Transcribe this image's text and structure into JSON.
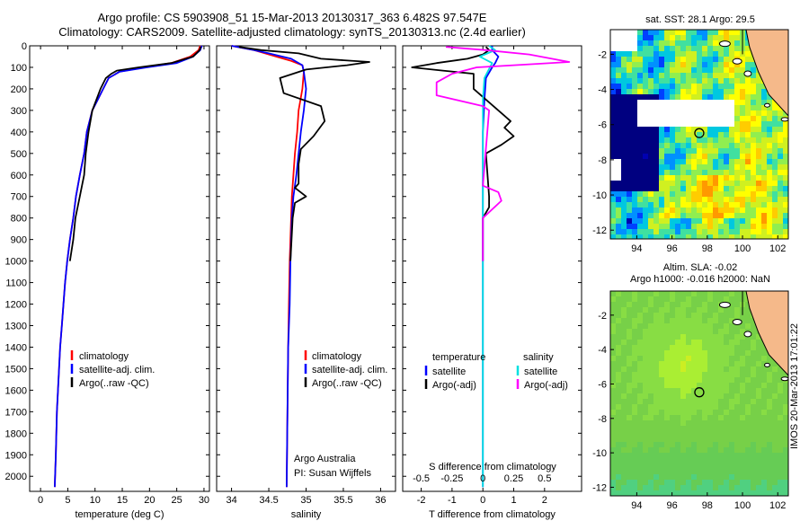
{
  "header": {
    "line1": "Argo profile: CS 5903908_51 15-Mar-2013 20130317_363 6.482S 97.547E",
    "line2": "Climatology: CARS2009. Satellite-adjusted climatology: synTS_20130313.nc (2.4d earlier)"
  },
  "colors": {
    "climatology": "#ff0000",
    "satellite": "#0000ff",
    "argo": "#000000",
    "sal_satellite": "#00e0e0",
    "sal_argo": "#ff00ff",
    "land": "#f5b98a"
  },
  "chart_data": [
    {
      "type": "line",
      "name": "temperature",
      "xlabel": "temperature (deg C)",
      "ylabel": "",
      "xlim": [
        -2,
        31
      ],
      "ylim": [
        2070,
        0
      ],
      "xticks": [
        0,
        5,
        10,
        15,
        20,
        25,
        30
      ],
      "xtick_labels": [
        "0",
        "5",
        "10",
        "15",
        "20",
        "25",
        "30"
      ],
      "yticks": [
        0,
        100,
        200,
        300,
        400,
        500,
        600,
        700,
        800,
        900,
        1000,
        1100,
        1200,
        1300,
        1400,
        1500,
        1600,
        1700,
        1800,
        1900,
        2000
      ],
      "ytick_labels": [
        "0",
        "100",
        "200",
        "300",
        "400",
        "500",
        "600",
        "700",
        "800",
        "900",
        "1000",
        "1100",
        "1200",
        "1300",
        "1400",
        "1500",
        "1600",
        "1700",
        "1800",
        "1900",
        "2000"
      ],
      "legend": [
        "climatology",
        "satellite-adj. clim.",
        "Argo(..raw -QC)"
      ],
      "series": [
        {
          "name": "climatology",
          "color": "#ff0000",
          "x": [
            29.3,
            29.0,
            27.5,
            24,
            19,
            14.5,
            12.5,
            11.5,
            10.5,
            9.5,
            8.5,
            8,
            7.2,
            6.5,
            6,
            5.4,
            4.9,
            4.5,
            4.2,
            3.9,
            3.6,
            3.4,
            3.2,
            3.0,
            2.8,
            2.6
          ],
          "y": [
            0,
            20,
            50,
            80,
            100,
            120,
            150,
            200,
            250,
            300,
            400,
            500,
            600,
            700,
            800,
            900,
            1000,
            1100,
            1200,
            1300,
            1400,
            1500,
            1600,
            1700,
            1900,
            2050
          ]
        },
        {
          "name": "satellite-adj. clim.",
          "color": "#0000ff",
          "x": [
            29.6,
            29.3,
            28.0,
            25,
            19.5,
            14.5,
            12.5,
            11.5,
            10.5,
            9.5,
            8.5,
            8,
            7.2,
            6.5,
            6,
            5.4,
            4.9,
            4.5,
            4.2,
            3.9,
            3.6,
            3.4,
            3.2,
            3.0,
            2.8,
            2.6
          ],
          "y": [
            0,
            20,
            50,
            80,
            100,
            120,
            150,
            200,
            250,
            300,
            400,
            500,
            600,
            700,
            800,
            900,
            1000,
            1100,
            1200,
            1300,
            1400,
            1500,
            1600,
            1700,
            1900,
            2050
          ]
        },
        {
          "name": "Argo(..raw -QC)",
          "color": "#000000",
          "x": [
            29.4,
            29.2,
            28.0,
            24,
            18,
            14,
            13,
            12,
            11,
            9.5,
            8.8,
            8.3,
            8,
            7.6,
            7.2,
            6.4,
            6,
            5.4
          ],
          "y": [
            5,
            20,
            50,
            80,
            100,
            115,
            130,
            150,
            200,
            300,
            400,
            500,
            600,
            650,
            700,
            800,
            900,
            1000
          ]
        }
      ]
    },
    {
      "type": "line",
      "name": "salinity",
      "xlabel": "salinity",
      "ylabel": "",
      "xlim": [
        33.8,
        36.2
      ],
      "ylim": [
        2070,
        0
      ],
      "xticks": [
        34,
        34.5,
        35,
        35.5,
        36
      ],
      "xtick_labels": [
        "34",
        "34.5",
        "35",
        "35.5",
        "36"
      ],
      "legend": [
        "climatology",
        "satellite-adj. clim.",
        "Argo(..raw -QC)"
      ],
      "annotation": [
        "Argo Australia",
        "PI: Susan Wijffels"
      ],
      "series": [
        {
          "name": "climatology",
          "color": "#ff0000",
          "x": [
            34.0,
            34.3,
            34.6,
            34.8,
            34.95,
            34.97,
            34.95,
            34.9,
            34.88,
            34.85,
            34.83,
            34.81,
            34.8,
            34.79,
            34.78,
            34.77,
            34.76,
            34.75,
            34.74
          ],
          "y": [
            0,
            20,
            50,
            70,
            90,
            120,
            200,
            300,
            400,
            500,
            600,
            700,
            800,
            900,
            1000,
            1200,
            1400,
            1700,
            2050
          ]
        },
        {
          "name": "satellite-adj. clim.",
          "color": "#0000ff",
          "x": [
            34.0,
            34.3,
            34.5,
            34.8,
            34.95,
            34.97,
            35.0,
            34.97,
            34.93,
            34.9,
            34.87,
            34.85,
            34.83,
            34.81,
            34.8,
            34.79,
            34.78,
            34.76,
            34.75,
            34.74
          ],
          "y": [
            0,
            20,
            35,
            60,
            90,
            120,
            200,
            300,
            400,
            500,
            600,
            650,
            700,
            800,
            900,
            1000,
            1200,
            1400,
            1700,
            2050
          ]
        },
        {
          "name": "Argo(..raw -QC)",
          "color": "#000000",
          "x": [
            34.1,
            34.4,
            34.9,
            35.2,
            35.85,
            35.55,
            35.0,
            34.65,
            34.7,
            35.2,
            35.25,
            35.1,
            34.93,
            34.9,
            34.9,
            34.9,
            34.85,
            35.0,
            34.85,
            34.82,
            34.79
          ],
          "y": [
            5,
            20,
            35,
            60,
            75,
            90,
            110,
            150,
            220,
            280,
            350,
            420,
            480,
            550,
            600,
            640,
            660,
            700,
            730,
            800,
            1000
          ]
        }
      ]
    },
    {
      "type": "line",
      "name": "differences",
      "xlabel": "T difference from climatology",
      "x2label": "S difference from climatology",
      "xlim": [
        -2.6,
        3.2
      ],
      "ylim": [
        2070,
        0
      ],
      "xticks": [
        -2,
        -1,
        0,
        1,
        2
      ],
      "xtick_labels": [
        "-2",
        "-1",
        "0",
        "1",
        "2"
      ],
      "x2ticks": [
        -0.5,
        -0.25,
        0,
        0.25,
        0.5
      ],
      "x2tick_labels": [
        "-0.5",
        "-0.25",
        "0",
        "0.25",
        "0.5"
      ],
      "legend_headers": [
        "temperature",
        "salinity"
      ],
      "legend": [
        "satellite",
        "Argo(-adj)",
        "satellite",
        "Argo(-adj)"
      ],
      "series": [
        {
          "name": "T satellite",
          "color": "#0000ff",
          "x": [
            0.3,
            0.3,
            0.5,
            0.4,
            0.3,
            0.1,
            0.05,
            0,
            0,
            0,
            0
          ],
          "y": [
            0,
            20,
            50,
            80,
            100,
            150,
            250,
            400,
            800,
            1500,
            2050
          ]
        },
        {
          "name": "T Argo(-adj)",
          "color": "#000000",
          "x": [
            0.1,
            0.2,
            0,
            -0.5,
            -1.5,
            -2.3,
            -1.3,
            -0.3,
            -0.3,
            0.5,
            0.9,
            0.7,
            1.0,
            0.6,
            0.1,
            0.2,
            0.2,
            0,
            0
          ],
          "y": [
            5,
            20,
            40,
            60,
            80,
            100,
            115,
            130,
            200,
            300,
            350,
            380,
            420,
            460,
            500,
            700,
            750,
            800,
            1000
          ]
        },
        {
          "name": "S satellite",
          "color": "#00e0e0",
          "x": [
            0.2,
            0.4,
            -0.1,
            0.3,
            0.05,
            0,
            0,
            0,
            0
          ],
          "y": [
            0,
            20,
            50,
            80,
            150,
            250,
            500,
            1000,
            2050
          ]
        },
        {
          "name": "S Argo(-adj)",
          "color": "#ff00ff",
          "x": [
            -1.2,
            0.1,
            1.5,
            2.8,
            1.0,
            -0.2,
            -1.0,
            -1.5,
            -1.5,
            0,
            0.2,
            0,
            0.5,
            0.6,
            0,
            0
          ],
          "y": [
            5,
            20,
            40,
            75,
            90,
            100,
            130,
            170,
            230,
            280,
            300,
            650,
            680,
            720,
            800,
            1000
          ]
        }
      ]
    },
    {
      "type": "heatmap",
      "name": "sst-map",
      "title": "sat. SST: 28.1  Argo: 29.5",
      "xlim": [
        92.5,
        102.6
      ],
      "ylim": [
        -12.5,
        -0.6
      ],
      "xticks": [
        94,
        96,
        98,
        100,
        102
      ],
      "xtick_labels": [
        "94",
        "96",
        "98",
        "100",
        "102"
      ],
      "yticks": [
        -2,
        -4,
        -6,
        -8,
        -10,
        -12
      ],
      "ytick_labels": [
        "-2",
        "-4",
        "-6",
        "-8",
        "-10",
        "-12"
      ],
      "marker": [
        97.547,
        -6.482
      ]
    },
    {
      "type": "heatmap",
      "name": "sla-map",
      "title": [
        "Altim. SLA: -0.02",
        "Argo h1000: -0.016  h2000: NaN"
      ],
      "xlim": [
        92.5,
        102.6
      ],
      "ylim": [
        -12.5,
        -0.6
      ],
      "xticks": [
        94,
        96,
        98,
        100,
        102
      ],
      "xtick_labels": [
        "94",
        "96",
        "98",
        "100",
        "102"
      ],
      "yticks": [
        -2,
        -4,
        -6,
        -8,
        -10,
        -12
      ],
      "ytick_labels": [
        "-2",
        "-4",
        "-6",
        "-8",
        "-10",
        "-12"
      ],
      "marker": [
        97.547,
        -6.482
      ]
    }
  ],
  "credit": "IMOS 20-Mar-2013 17:01:22"
}
